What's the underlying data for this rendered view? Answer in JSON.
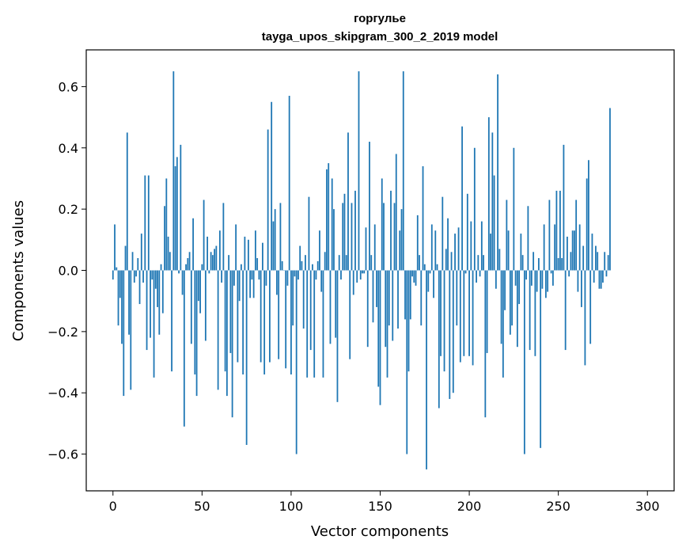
{
  "chart_data": {
    "type": "bar",
    "title": "горгулье",
    "subtitle": "tayga_upos_skipgram_300_2_2019 model",
    "xlabel": "Vector components",
    "ylabel": "Components values",
    "xlim": [
      -15,
      315
    ],
    "ylim": [
      -0.72,
      0.72
    ],
    "xticks": [
      0,
      50,
      100,
      150,
      200,
      250,
      300
    ],
    "yticks": [
      -0.6,
      -0.4,
      -0.2,
      0.0,
      0.2,
      0.4,
      0.6
    ],
    "ytick_labels": [
      "−0.6",
      "−0.4",
      "−0.2",
      "0.0",
      "0.2",
      "0.4",
      "0.6"
    ],
    "grid": false,
    "bar_color": "#1f77b4",
    "values": [
      -0.03,
      0.15,
      0.01,
      -0.18,
      -0.09,
      -0.24,
      -0.41,
      0.08,
      0.45,
      -0.21,
      -0.39,
      0.06,
      -0.04,
      -0.02,
      0.04,
      -0.11,
      0.12,
      -0.04,
      0.31,
      -0.26,
      0.31,
      -0.22,
      -0.03,
      -0.35,
      -0.06,
      -0.12,
      -0.21,
      0.02,
      -0.14,
      0.21,
      0.3,
      0.11,
      0.06,
      -0.33,
      0.65,
      0.34,
      0.37,
      -0.01,
      0.41,
      -0.08,
      -0.51,
      0.02,
      0.04,
      0.06,
      -0.24,
      0.17,
      -0.34,
      -0.41,
      -0.1,
      -0.14,
      0.02,
      0.23,
      -0.23,
      0.11,
      -0.01,
      0.06,
      0.05,
      0.07,
      0.08,
      -0.39,
      0.13,
      -0.04,
      0.22,
      -0.33,
      -0.41,
      0.05,
      -0.27,
      -0.48,
      -0.05,
      0.15,
      -0.3,
      -0.1,
      0.02,
      -0.34,
      0.11,
      -0.57,
      0.1,
      -0.09,
      -0.03,
      -0.09,
      0.13,
      0.04,
      -0.03,
      -0.3,
      0.09,
      -0.34,
      -0.05,
      0.46,
      -0.3,
      0.55,
      0.16,
      0.2,
      -0.08,
      -0.29,
      0.22,
      0.03,
      0.0,
      -0.32,
      -0.05,
      0.57,
      -0.34,
      -0.18,
      -0.02,
      -0.6,
      -0.03,
      0.08,
      0.03,
      -0.19,
      0.05,
      -0.35,
      0.24,
      -0.26,
      0.02,
      -0.35,
      -0.03,
      0.03,
      0.13,
      -0.07,
      -0.35,
      0.06,
      0.33,
      0.35,
      -0.24,
      0.3,
      0.2,
      -0.22,
      -0.43,
      0.05,
      -0.03,
      0.22,
      0.25,
      0.05,
      0.45,
      -0.29,
      0.22,
      -0.08,
      0.26,
      -0.04,
      0.65,
      -0.03,
      -0.01,
      -0.01,
      0.14,
      -0.25,
      0.42,
      0.05,
      -0.17,
      0.15,
      -0.12,
      -0.38,
      -0.44,
      0.3,
      0.22,
      -0.25,
      -0.35,
      -0.18,
      0.26,
      -0.23,
      0.22,
      0.38,
      -0.19,
      0.13,
      0.2,
      0.65,
      -0.16,
      -0.6,
      -0.33,
      -0.16,
      -0.02,
      -0.04,
      -0.05,
      0.18,
      0.05,
      -0.18,
      0.34,
      0.02,
      -0.65,
      -0.07,
      -0.01,
      0.15,
      -0.09,
      0.13,
      0.02,
      -0.45,
      -0.28,
      0.24,
      -0.33,
      0.07,
      0.17,
      -0.42,
      0.06,
      -0.4,
      0.12,
      -0.18,
      0.14,
      -0.3,
      0.47,
      -0.28,
      -0.01,
      0.25,
      -0.28,
      0.16,
      -0.31,
      0.4,
      -0.04,
      0.05,
      -0.02,
      0.16,
      0.05,
      -0.48,
      -0.27,
      0.5,
      0.12,
      0.45,
      0.31,
      -0.06,
      0.64,
      0.07,
      -0.24,
      -0.35,
      -0.13,
      0.23,
      0.13,
      -0.21,
      -0.18,
      0.4,
      -0.05,
      -0.25,
      -0.11,
      0.12,
      0.05,
      -0.6,
      -0.03,
      0.21,
      -0.26,
      -0.05,
      0.06,
      -0.28,
      -0.07,
      0.04,
      -0.58,
      -0.06,
      0.15,
      -0.09,
      -0.07,
      0.23,
      -0.01,
      -0.05,
      0.15,
      0.26,
      0.04,
      0.26,
      0.04,
      0.41,
      -0.26,
      0.11,
      -0.02,
      0.06,
      0.13,
      0.13,
      0.23,
      -0.07,
      0.15,
      -0.12,
      0.08,
      -0.31,
      0.3,
      0.36,
      -0.24,
      0.12,
      -0.04,
      0.08,
      0.06,
      -0.06,
      -0.06,
      -0.04,
      0.06,
      -0.02,
      0.05,
      0.53
    ]
  }
}
